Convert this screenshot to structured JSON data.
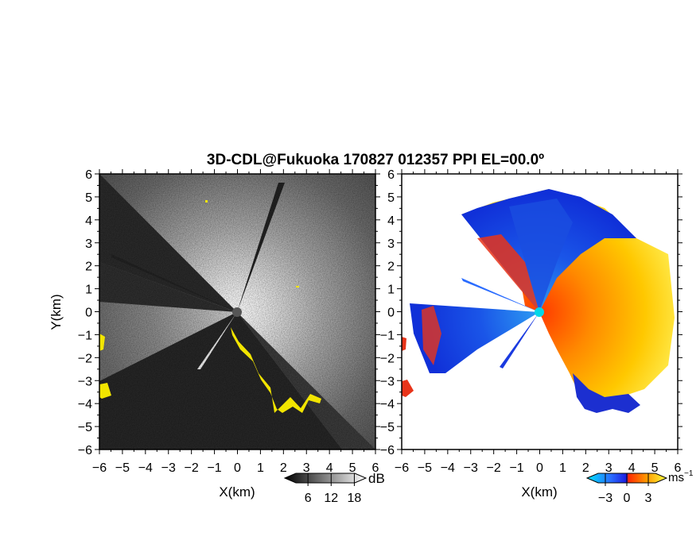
{
  "chart_data": {
    "type": "heatmap",
    "title": "3D-CDL@Fukuoka 170827 012357 PPI EL=00.0º",
    "axes": {
      "xlabel": "X(km)",
      "ylabel": "Y(km)",
      "xlim": [
        -6,
        6
      ],
      "ylim": [
        -6,
        6
      ],
      "xticks": [
        "−6",
        "−5",
        "−4",
        "−3",
        "−2",
        "−1",
        "0",
        "1",
        "2",
        "3",
        "4",
        "5",
        "6"
      ],
      "yticks": [
        "6",
        "5",
        "4",
        "3",
        "2",
        "1",
        "0",
        "−1",
        "−2",
        "−3",
        "−4",
        "−5",
        "−6"
      ]
    },
    "panels": [
      {
        "name": "left",
        "colormap": "grayscale + yellow",
        "colorbar": {
          "unit": "dB",
          "ticks": [
            6,
            12,
            18
          ],
          "tick_labels": [
            "6",
            "12",
            "18"
          ],
          "range": [
            0,
            21
          ]
        }
      },
      {
        "name": "right",
        "colormap": "cyan-blue-red-orange-yellow",
        "colorbar": {
          "unit": "ms",
          "unit_exp": "−1",
          "ticks": [
            -3,
            0,
            3
          ],
          "tick_labels": [
            "−3",
            "0",
            "3"
          ],
          "range": [
            -4,
            4
          ]
        }
      }
    ]
  }
}
